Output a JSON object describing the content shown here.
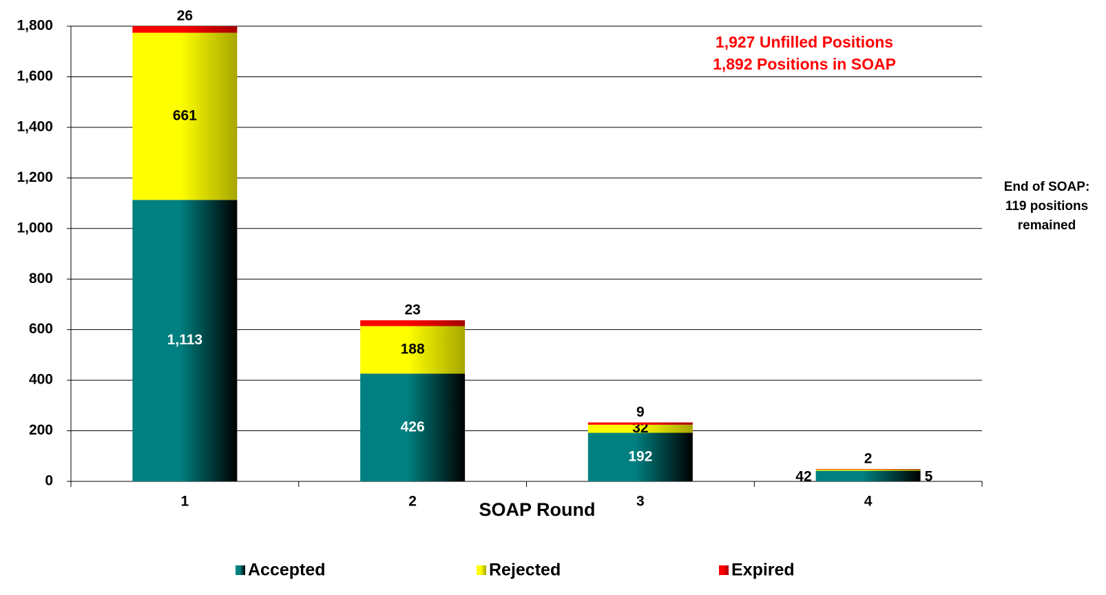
{
  "chart_data": {
    "type": "stacked_bar",
    "x_label": "SOAP Round",
    "categories": [
      "1",
      "2",
      "3",
      "4"
    ],
    "series": [
      {
        "name": "Accepted",
        "color": "#008080",
        "values": [
          1113,
          426,
          192,
          42
        ],
        "value_labels": [
          "1,113",
          "426",
          "192",
          "42"
        ]
      },
      {
        "name": "Rejected",
        "color": "#ffff00",
        "values": [
          661,
          188,
          32,
          5
        ]
      },
      {
        "name": "Expired",
        "color": "#ff0000",
        "values": [
          26,
          23,
          9,
          2
        ]
      }
    ],
    "ylim": [
      0,
      1800
    ],
    "yticks": [
      0,
      200,
      400,
      600,
      800,
      {
        "value": 1000,
        "label": "1,000"
      },
      {
        "value": 1200,
        "label": "1,200"
      },
      {
        "value": 1400,
        "label": "1,400"
      },
      {
        "value": 1600,
        "label": "1,600"
      },
      {
        "value": 1800,
        "label": "1,800"
      }
    ],
    "grid": true,
    "annotations": [
      "1,927 Unfilled Positions",
      "1,892 Positions in SOAP",
      "End of SOAP:",
      "119 positions",
      "remained"
    ]
  }
}
